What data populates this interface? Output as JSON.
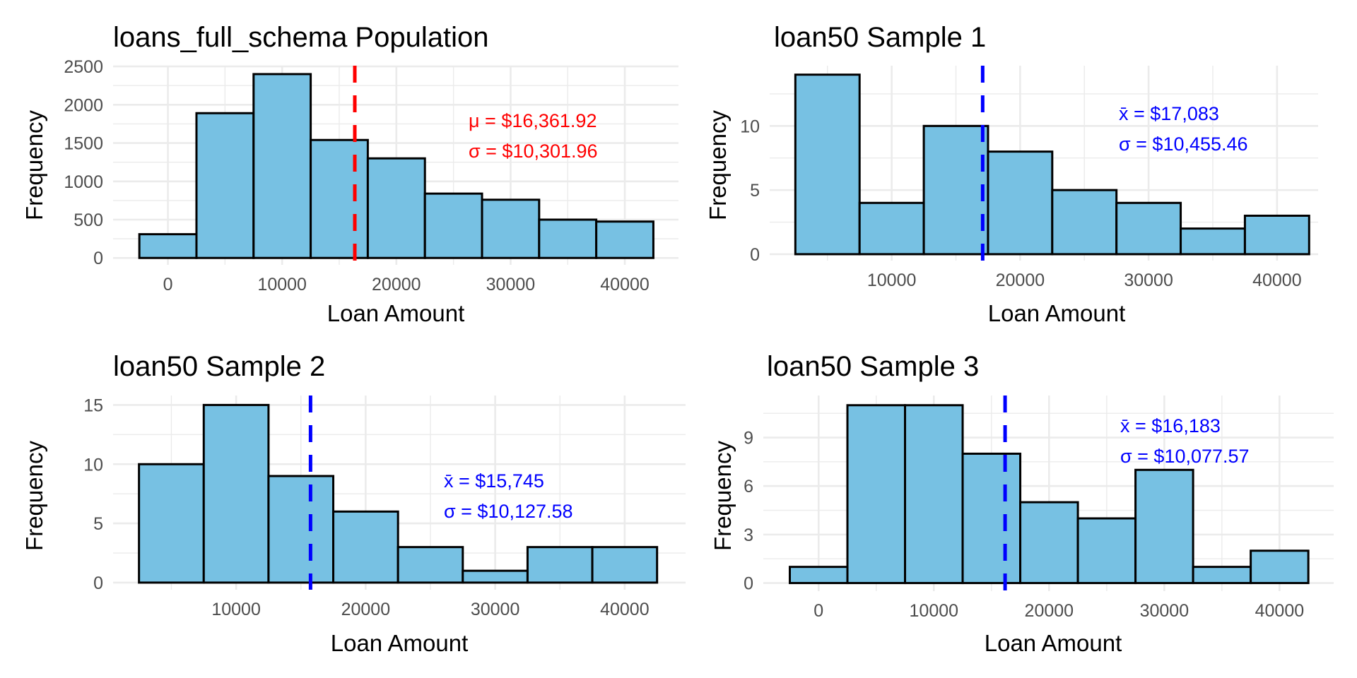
{
  "chart_data": [
    {
      "type": "bar",
      "subtype": "histogram",
      "title": "loans_full_schema Population",
      "xlabel": "Loan Amount",
      "ylabel": "Frequency",
      "bin_width": 5000,
      "bin_centers": [
        0,
        5000,
        10000,
        15000,
        20000,
        25000,
        30000,
        35000,
        40000
      ],
      "values": [
        310,
        1890,
        2400,
        1540,
        1300,
        840,
        760,
        500,
        475
      ],
      "x_ticks": [
        0,
        10000,
        20000,
        30000,
        40000
      ],
      "x_tick_labels": [
        "0",
        "10000",
        "20000",
        "30000",
        "40000"
      ],
      "y_ticks": [
        0,
        500,
        1000,
        1500,
        2000,
        2500
      ],
      "y_tick_labels": [
        "0",
        "500",
        "1000",
        "1500",
        "2000",
        "2500"
      ],
      "xlim": [
        -4800,
        44700
      ],
      "ylim": [
        -90,
        2510
      ],
      "mean_line": 16361.92,
      "mean_line_color": "#ff0000",
      "annotation_color": "#ff0000",
      "annotations": [
        "μ = $16,361.92",
        "σ = $10,301.96"
      ],
      "grid": true,
      "bar_color": "#77c1e3"
    },
    {
      "type": "bar",
      "subtype": "histogram",
      "title": "loan50 Sample 1",
      "xlabel": "Loan Amount",
      "ylabel": "Frequency",
      "bin_width": 5000,
      "bin_centers": [
        5000,
        10000,
        15000,
        20000,
        25000,
        30000,
        35000,
        40000
      ],
      "values": [
        14,
        4,
        10,
        8,
        5,
        4,
        2,
        3
      ],
      "x_ticks": [
        10000,
        20000,
        30000,
        40000
      ],
      "x_tick_labels": [
        "10000",
        "20000",
        "30000",
        "40000"
      ],
      "y_ticks": [
        0,
        5,
        10
      ],
      "y_tick_labels": [
        "0",
        "5",
        "10"
      ],
      "xlim": [
        500,
        43200
      ],
      "ylim": [
        -0.5,
        14.7
      ],
      "mean_line": 17083,
      "mean_line_color": "#0000ff",
      "annotation_color": "#0000ff",
      "annotations": [
        "x̄ = $17,083",
        "σ = $10,455.46"
      ],
      "grid": true,
      "bar_color": "#77c1e3"
    },
    {
      "type": "bar",
      "subtype": "histogram",
      "title": "loan50 Sample 2",
      "xlabel": "Loan Amount",
      "ylabel": "Frequency",
      "bin_width": 5000,
      "bin_centers": [
        5000,
        10000,
        15000,
        20000,
        25000,
        30000,
        35000,
        40000
      ],
      "values": [
        10,
        15,
        9,
        6,
        3,
        1,
        3,
        3
      ],
      "x_ticks": [
        10000,
        20000,
        30000,
        40000
      ],
      "x_tick_labels": [
        "10000",
        "20000",
        "30000",
        "40000"
      ],
      "y_ticks": [
        0,
        5,
        10,
        15
      ],
      "y_tick_labels": [
        "0",
        "5",
        "10",
        "15"
      ],
      "xlim": [
        500,
        44700
      ],
      "ylim": [
        -0.6,
        15.8
      ],
      "mean_line": 15745,
      "mean_line_color": "#0000ff",
      "annotation_color": "#0000ff",
      "annotations": [
        "x̄ = $15,745",
        "σ = $10,127.58"
      ],
      "grid": true,
      "bar_color": "#77c1e3"
    },
    {
      "type": "bar",
      "subtype": "histogram",
      "title": "loan50 Sample 3",
      "xlabel": "Loan Amount",
      "ylabel": "Frequency",
      "bin_width": 5000,
      "bin_centers": [
        0,
        5000,
        10000,
        15000,
        20000,
        25000,
        30000,
        35000,
        40000
      ],
      "values": [
        1,
        11,
        11,
        8,
        5,
        4,
        7,
        1,
        2
      ],
      "x_ticks": [
        0,
        10000,
        20000,
        30000,
        40000
      ],
      "x_tick_labels": [
        "0",
        "10000",
        "20000",
        "30000",
        "40000"
      ],
      "y_ticks": [
        0,
        3,
        6,
        9
      ],
      "y_tick_labels": [
        "0",
        "3",
        "6",
        "9"
      ],
      "xlim": [
        -4800,
        44700
      ],
      "ylim": [
        -0.5,
        11.6
      ],
      "mean_line": 16183,
      "mean_line_color": "#0000ff",
      "annotation_color": "#0000ff",
      "annotations": [
        "x̄ = $16,183",
        "σ = $10,077.57"
      ],
      "grid": true,
      "bar_color": "#77c1e3"
    }
  ]
}
